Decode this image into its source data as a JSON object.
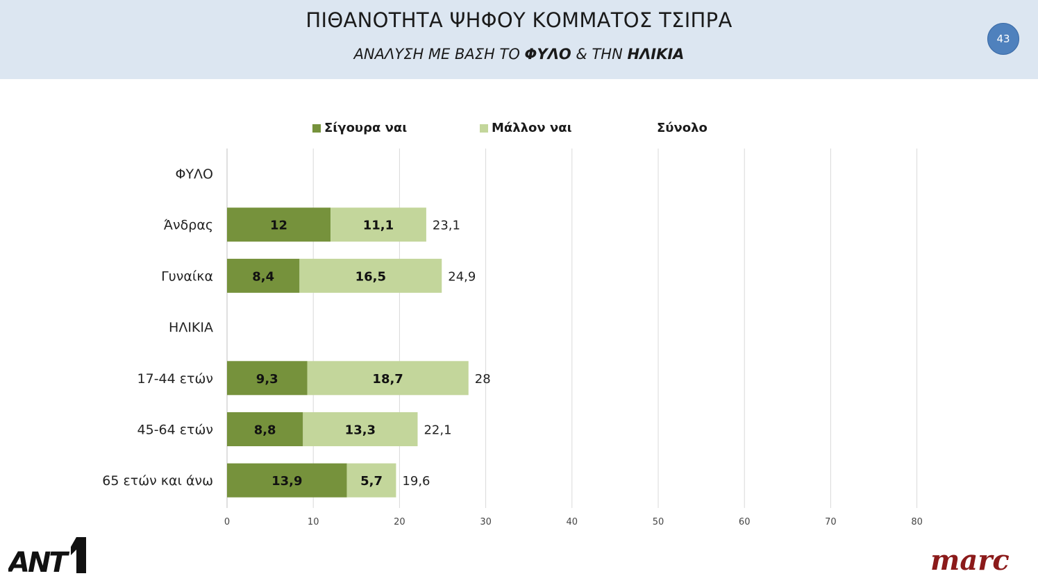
{
  "header": {
    "title": "ΠΙΘΑΝΟΤΗΤΑ ΨΗΦΟΥ ΚΟΜΜΑΤΟΣ ΤΣΙΠΡΑ",
    "subtitle_part1": "ΑΝΑΛΥΣΗ ΜΕ ΒΑΣΗ ΤΟ ",
    "subtitle_bold1": "ΦΥΛΟ",
    "subtitle_part2": " & ΤΗΝ ",
    "subtitle_bold2": "ΗΛΙΚΙΑ",
    "page_number": "43"
  },
  "legend": {
    "series1": "Σίγουρα ναι",
    "series2": "Μάλλον ναι",
    "series3": "Σύνολο"
  },
  "colors": {
    "header_bg": "#dce6f1",
    "series1": "#76923c",
    "series2": "#c3d69b",
    "grid": "#d9d9d9",
    "page_badge": "#4f81bd",
    "marc_logo": "#8b1a1a"
  },
  "logos": {
    "left": "ANT1",
    "right": "marc"
  },
  "chart_data": {
    "type": "bar",
    "orientation": "horizontal",
    "stacked": true,
    "categories": [
      "ΦΥΛΟ",
      "Άνδρας",
      "Γυναίκα",
      "ΗΛΙΚΙΑ",
      "17-44 ετών",
      "45-64 ετών",
      "65 ετών και άνω"
    ],
    "series": [
      {
        "name": "Σίγουρα ναι",
        "values": [
          null,
          12,
          8.4,
          null,
          9.3,
          8.8,
          13.9
        ],
        "labels": [
          "",
          "12",
          "8,4",
          "",
          "9,3",
          "8,8",
          "13,9"
        ]
      },
      {
        "name": "Μάλλον ναι",
        "values": [
          null,
          11.1,
          16.5,
          null,
          18.7,
          13.3,
          5.7
        ],
        "labels": [
          "",
          "11,1",
          "16,5",
          "",
          "18,7",
          "13,3",
          "5,7"
        ]
      }
    ],
    "totals": {
      "name": "Σύνολο",
      "values": [
        null,
        23.1,
        24.9,
        null,
        28,
        22.1,
        19.6
      ],
      "labels": [
        "",
        "23,1",
        "24,9",
        "",
        "28",
        "22,1",
        "19,6"
      ]
    },
    "xlim": [
      0,
      90
    ],
    "xticks": [
      0,
      10,
      20,
      30,
      40,
      50,
      60,
      70,
      80
    ],
    "grid": true,
    "legend_position": "top"
  }
}
